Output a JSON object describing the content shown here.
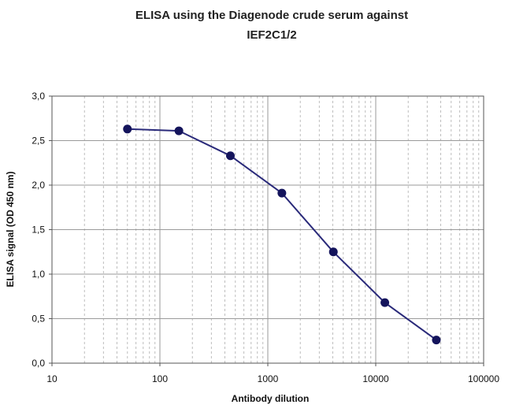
{
  "chart_data": {
    "type": "line",
    "title_lines": [
      "ELISA using the Diagenode crude serum against",
      "IEF2C1/2"
    ],
    "xlabel": "Antibody dilution",
    "ylabel": "ELISA signal (OD 450 nm)",
    "x_scale": "log",
    "xlim": [
      10,
      100000
    ],
    "ylim": [
      0,
      3
    ],
    "x_ticks": [
      10,
      100,
      1000,
      10000,
      100000
    ],
    "x_tick_labels": [
      "10",
      "100",
      "1000",
      "10000",
      "100000"
    ],
    "y_ticks": [
      0,
      0.5,
      1,
      1.5,
      2,
      2.5,
      3
    ],
    "y_tick_labels": [
      "0,0",
      "0,5",
      "1,0",
      "1,5",
      "2,0",
      "2,5",
      "3,0"
    ],
    "grid": true,
    "line_color": "#2a2a7a",
    "marker_color": "#14145c",
    "series": [
      {
        "x": [
          50,
          150,
          450,
          1350,
          4050,
          12150,
          36450
        ],
        "y": [
          2.63,
          2.61,
          2.33,
          1.91,
          1.25,
          0.68,
          0.26
        ]
      }
    ]
  }
}
